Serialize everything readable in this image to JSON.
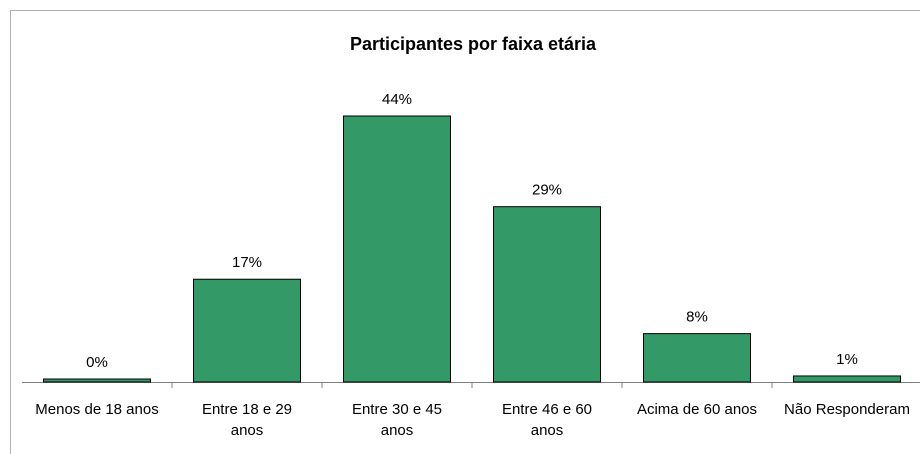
{
  "chart_data": {
    "type": "bar",
    "title": "Participantes por faixa etária",
    "categories": [
      "Menos de 18 anos",
      "Entre 18 e 29 anos",
      "Entre 30 e 45 anos",
      "Entre 46 e 60 anos",
      "Acima de 60 anos",
      "Não Responderam"
    ],
    "values": [
      0,
      17,
      44,
      29,
      8,
      1
    ],
    "value_labels": [
      "0%",
      "17%",
      "44%",
      "29%",
      "8%",
      "1%"
    ],
    "color": "#339966"
  }
}
